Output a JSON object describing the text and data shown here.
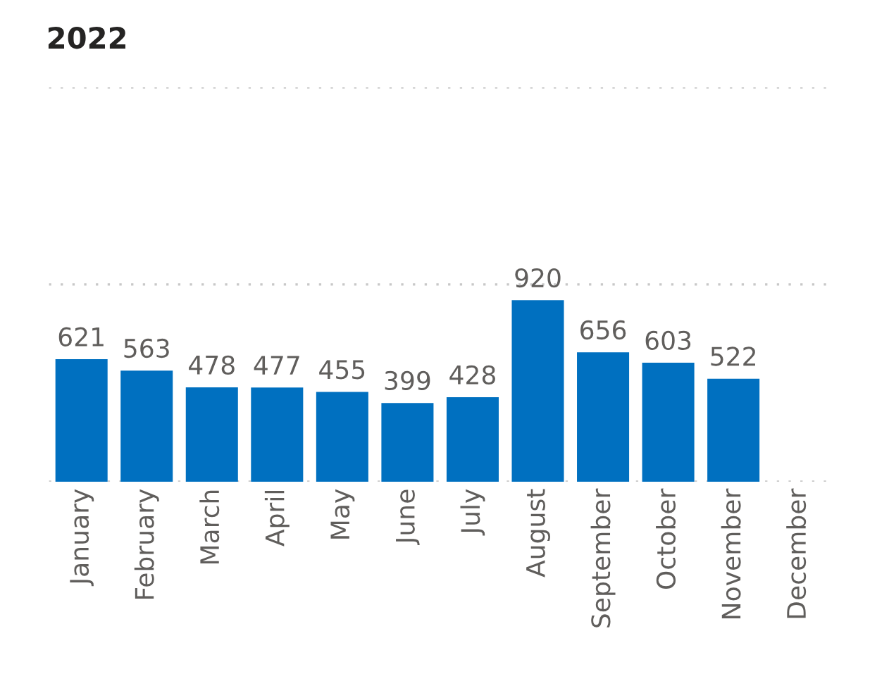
{
  "chart_data": {
    "type": "bar",
    "title": "2022",
    "categories": [
      "January",
      "February",
      "March",
      "April",
      "May",
      "June",
      "July",
      "August",
      "September",
      "October",
      "November",
      "December"
    ],
    "values": [
      621,
      563,
      478,
      477,
      455,
      399,
      428,
      920,
      656,
      603,
      522,
      null
    ],
    "color": "#0070c0",
    "data_labels": true,
    "ylim": [
      0,
      2000
    ],
    "yticks": [
      {
        "value": 0,
        "label": null
      },
      {
        "value": 1000,
        "label": null
      },
      {
        "value": 2000,
        "label": null
      }
    ],
    "tick_labels": "x",
    "grid": "y"
  }
}
